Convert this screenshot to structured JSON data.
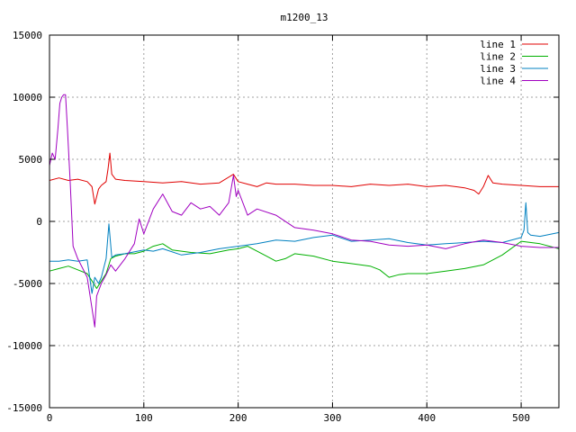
{
  "chart_data": {
    "type": "line",
    "title": "m1200_13",
    "xlabel": "",
    "ylabel": "",
    "xlim": [
      0,
      540
    ],
    "ylim": [
      -15000,
      15000
    ],
    "xticks": [
      0,
      100,
      200,
      300,
      400,
      500
    ],
    "yticks": [
      -15000,
      -10000,
      -5000,
      0,
      5000,
      10000,
      15000
    ],
    "grid": true,
    "legend_position": "top-right",
    "series": [
      {
        "name": "line 1",
        "color": "#e00000",
        "x": [
          0,
          10,
          20,
          30,
          40,
          45,
          48,
          52,
          55,
          60,
          62,
          64,
          66,
          70,
          80,
          100,
          120,
          140,
          160,
          180,
          195,
          200,
          210,
          220,
          230,
          240,
          260,
          280,
          300,
          320,
          340,
          360,
          380,
          400,
          420,
          440,
          450,
          455,
          460,
          465,
          470,
          480,
          500,
          520,
          540
        ],
        "y": [
          3300,
          3500,
          3300,
          3400,
          3200,
          2800,
          1400,
          2600,
          2900,
          3200,
          4200,
          5500,
          3800,
          3400,
          3300,
          3200,
          3100,
          3200,
          3000,
          3100,
          3800,
          3200,
          3000,
          2800,
          3100,
          3000,
          3000,
          2900,
          2900,
          2800,
          3000,
          2900,
          3000,
          2800,
          2900,
          2700,
          2500,
          2200,
          2800,
          3700,
          3100,
          3000,
          2900,
          2800,
          2800
        ]
      },
      {
        "name": "line 2",
        "color": "#00b000",
        "x": [
          0,
          10,
          20,
          30,
          40,
          45,
          50,
          55,
          60,
          65,
          70,
          80,
          90,
          100,
          110,
          120,
          130,
          150,
          170,
          190,
          200,
          210,
          220,
          230,
          240,
          250,
          260,
          280,
          300,
          320,
          340,
          350,
          360,
          370,
          380,
          400,
          420,
          440,
          460,
          480,
          500,
          520,
          540
        ],
        "y": [
          -4000,
          -3800,
          -3600,
          -3900,
          -4200,
          -4800,
          -5400,
          -4800,
          -4200,
          -3000,
          -2800,
          -2600,
          -2600,
          -2400,
          -2000,
          -1800,
          -2300,
          -2500,
          -2600,
          -2300,
          -2200,
          -2000,
          -2400,
          -2800,
          -3200,
          -3000,
          -2600,
          -2800,
          -3200,
          -3400,
          -3600,
          -3900,
          -4500,
          -4300,
          -4200,
          -4200,
          -4000,
          -3800,
          -3500,
          -2700,
          -1600,
          -1800,
          -2200
        ]
      },
      {
        "name": "line 3",
        "color": "#0080c0",
        "x": [
          0,
          10,
          20,
          30,
          40,
          45,
          48,
          52,
          55,
          60,
          63,
          66,
          70,
          80,
          100,
          110,
          120,
          140,
          160,
          180,
          200,
          220,
          240,
          260,
          280,
          300,
          320,
          340,
          360,
          380,
          400,
          420,
          440,
          460,
          480,
          500,
          503,
          505,
          507,
          510,
          520,
          540
        ],
        "y": [
          -3200,
          -3200,
          -3100,
          -3200,
          -3100,
          -5800,
          -4500,
          -5000,
          -4500,
          -3000,
          -200,
          -2900,
          -2700,
          -2600,
          -2300,
          -2400,
          -2200,
          -2700,
          -2500,
          -2200,
          -2000,
          -1800,
          -1500,
          -1600,
          -1300,
          -1100,
          -1600,
          -1500,
          -1400,
          -1700,
          -1900,
          -1800,
          -1700,
          -1600,
          -1700,
          -1300,
          -700,
          1500,
          -900,
          -1100,
          -1200,
          -900
        ]
      },
      {
        "name": "line 4",
        "color": "#a000c0",
        "x": [
          0,
          3,
          6,
          9,
          11,
          13,
          15,
          17,
          19,
          22,
          25,
          30,
          40,
          45,
          48,
          50,
          55,
          60,
          65,
          70,
          80,
          90,
          95,
          100,
          110,
          120,
          130,
          140,
          150,
          160,
          170,
          180,
          190,
          195,
          198,
          200,
          210,
          220,
          240,
          260,
          280,
          300,
          320,
          340,
          360,
          380,
          400,
          420,
          440,
          460,
          480,
          500,
          520,
          540
        ],
        "y": [
          4500,
          5500,
          5000,
          7500,
          9500,
          10000,
          10200,
          10200,
          7500,
          3000,
          -2000,
          -3000,
          -4500,
          -7000,
          -8500,
          -6000,
          -5000,
          -4300,
          -3500,
          -4000,
          -3000,
          -1800,
          200,
          -1000,
          1000,
          2200,
          800,
          500,
          1500,
          1000,
          1200,
          500,
          1500,
          3700,
          2000,
          2500,
          500,
          1000,
          500,
          -500,
          -700,
          -1000,
          -1500,
          -1600,
          -1900,
          -2000,
          -1900,
          -2200,
          -1800,
          -1500,
          -1700,
          -2000,
          -2100,
          -2100
        ]
      }
    ]
  }
}
